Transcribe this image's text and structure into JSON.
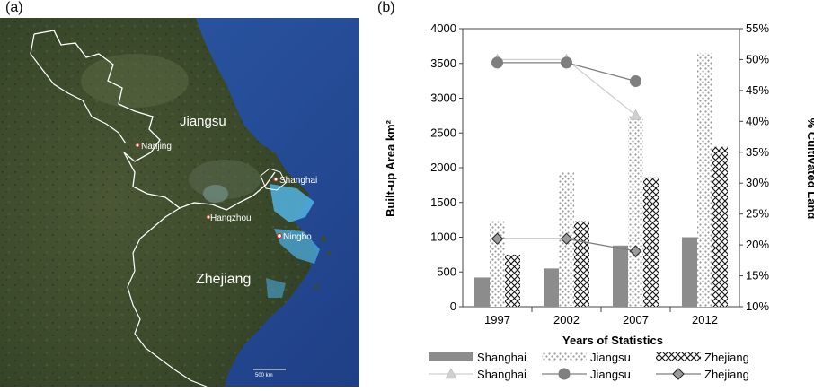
{
  "panels": {
    "a_label": "(a)",
    "b_label": "(b)"
  },
  "map": {
    "region_labels": [
      "Jiangsu",
      "Zhejiang"
    ],
    "city_labels": [
      "Nanjing",
      "Shanghai",
      "Hangzhou",
      "Ningbo"
    ],
    "scale_label": "500 km",
    "colors": {
      "land": "#3d4a2c",
      "sea": "#2a4f9a",
      "coast": "#4da0d8",
      "border": "#ffffff"
    }
  },
  "chart_data": {
    "type": "bar",
    "categories": [
      "1997",
      "2002",
      "2007",
      "2012"
    ],
    "xlabel": "Years of Statistics",
    "ylabel": "Built-up  Area km²",
    "y2label": "% Cultivated Land",
    "ylim": [
      0,
      4000
    ],
    "y2lim": [
      10,
      55
    ],
    "yticks": [
      "0",
      "500",
      "1000",
      "1500",
      "2000",
      "2500",
      "3000",
      "3500",
      "4000"
    ],
    "y2ticks": [
      "10%",
      "15%",
      "20%",
      "25%",
      "30%",
      "35%",
      "40%",
      "45%",
      "50%",
      "55%"
    ],
    "bar_series": [
      {
        "name": "Shanghai",
        "values": [
          420,
          550,
          880,
          1000
        ],
        "color": "#8c8c8c",
        "pattern": "solid"
      },
      {
        "name": "Jiangsu",
        "values": [
          1230,
          1930,
          2740,
          3650
        ],
        "color": "#b5b5b5",
        "pattern": "dots"
      },
      {
        "name": "Zhejiang",
        "values": [
          750,
          1230,
          1860,
          2300
        ],
        "color": "#222222",
        "pattern": "crosshatch"
      }
    ],
    "line_series": [
      {
        "name": "Shanghai",
        "values": [
          50,
          50,
          41,
          null
        ],
        "color": "#cfcfcf",
        "marker": "triangle"
      },
      {
        "name": "Jiangsu",
        "values": [
          49.5,
          49.5,
          46.5,
          null
        ],
        "color": "#7f7f7f",
        "marker": "circle"
      },
      {
        "name": "Zhejiang",
        "values": [
          21,
          21,
          19,
          null
        ],
        "color": "#7f7f7f",
        "marker": "diamond"
      }
    ]
  }
}
